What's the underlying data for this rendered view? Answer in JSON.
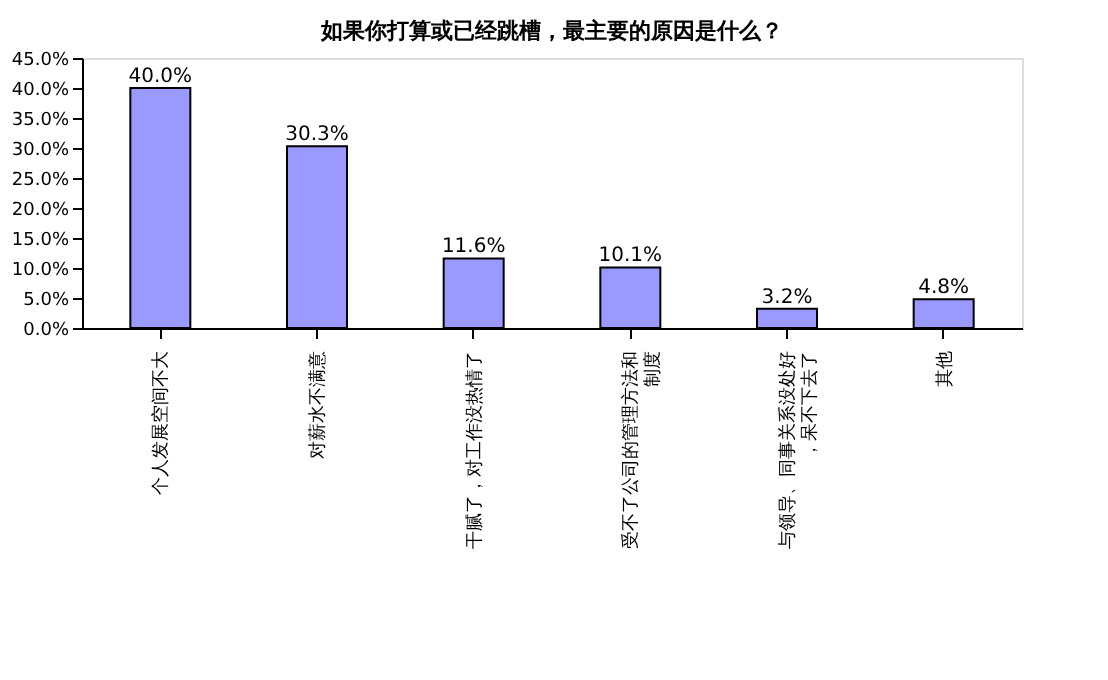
{
  "chart_data": {
    "type": "bar",
    "title": "如果你打算或已经跳槽，最主要的原因是什么？",
    "categories": [
      "个人发展空间不大",
      "对薪水不满意",
      "干腻了，对工作没热情了",
      "受不了公司的管理方法和制度",
      "与领导、同事关系没处好，呆不下去了",
      "其他"
    ],
    "values": [
      40.0,
      30.3,
      11.6,
      10.1,
      3.2,
      4.8
    ],
    "value_labels": [
      "40.0%",
      "30.3%",
      "11.6%",
      "10.1%",
      "3.2%",
      "4.8%"
    ],
    "color": "#9999ff",
    "ylim": [
      0,
      45
    ],
    "yticks": [
      {
        "value": 0,
        "label": "0.0%"
      },
      {
        "value": 5,
        "label": "5.0%"
      },
      {
        "value": 10,
        "label": "10.0%"
      },
      {
        "value": 15,
        "label": "15.0%"
      },
      {
        "value": 20,
        "label": "20.0%"
      },
      {
        "value": 25,
        "label": "25.0%"
      },
      {
        "value": 30,
        "label": "30.0%"
      },
      {
        "value": 35,
        "label": "35.0%"
      },
      {
        "value": 40,
        "label": "40.0%"
      },
      {
        "value": 45,
        "label": "45.0%"
      }
    ],
    "grid": false
  }
}
